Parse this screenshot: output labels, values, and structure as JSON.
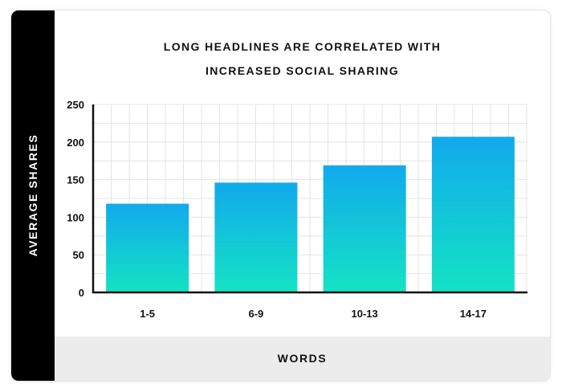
{
  "chart_data": {
    "type": "bar",
    "title": "LONG HEADLINES ARE CORRELATED WITH",
    "subtitle": "INCREASED SOCIAL SHARING",
    "xlabel": "WORDS",
    "ylabel": "AVERAGE SHARES",
    "categories": [
      "1-5",
      "6-9",
      "10-13",
      "14-17"
    ],
    "values": [
      118,
      146,
      169,
      207
    ],
    "ylim": [
      0,
      250
    ],
    "yticks": [
      0,
      50,
      100,
      150,
      200,
      250
    ],
    "grid": true,
    "legend": "none",
    "colors": {
      "bar_top": "#12a9ec",
      "bar_bottom": "#14e3c4",
      "axis": "#111111",
      "grid": "#e4e4e4"
    }
  }
}
